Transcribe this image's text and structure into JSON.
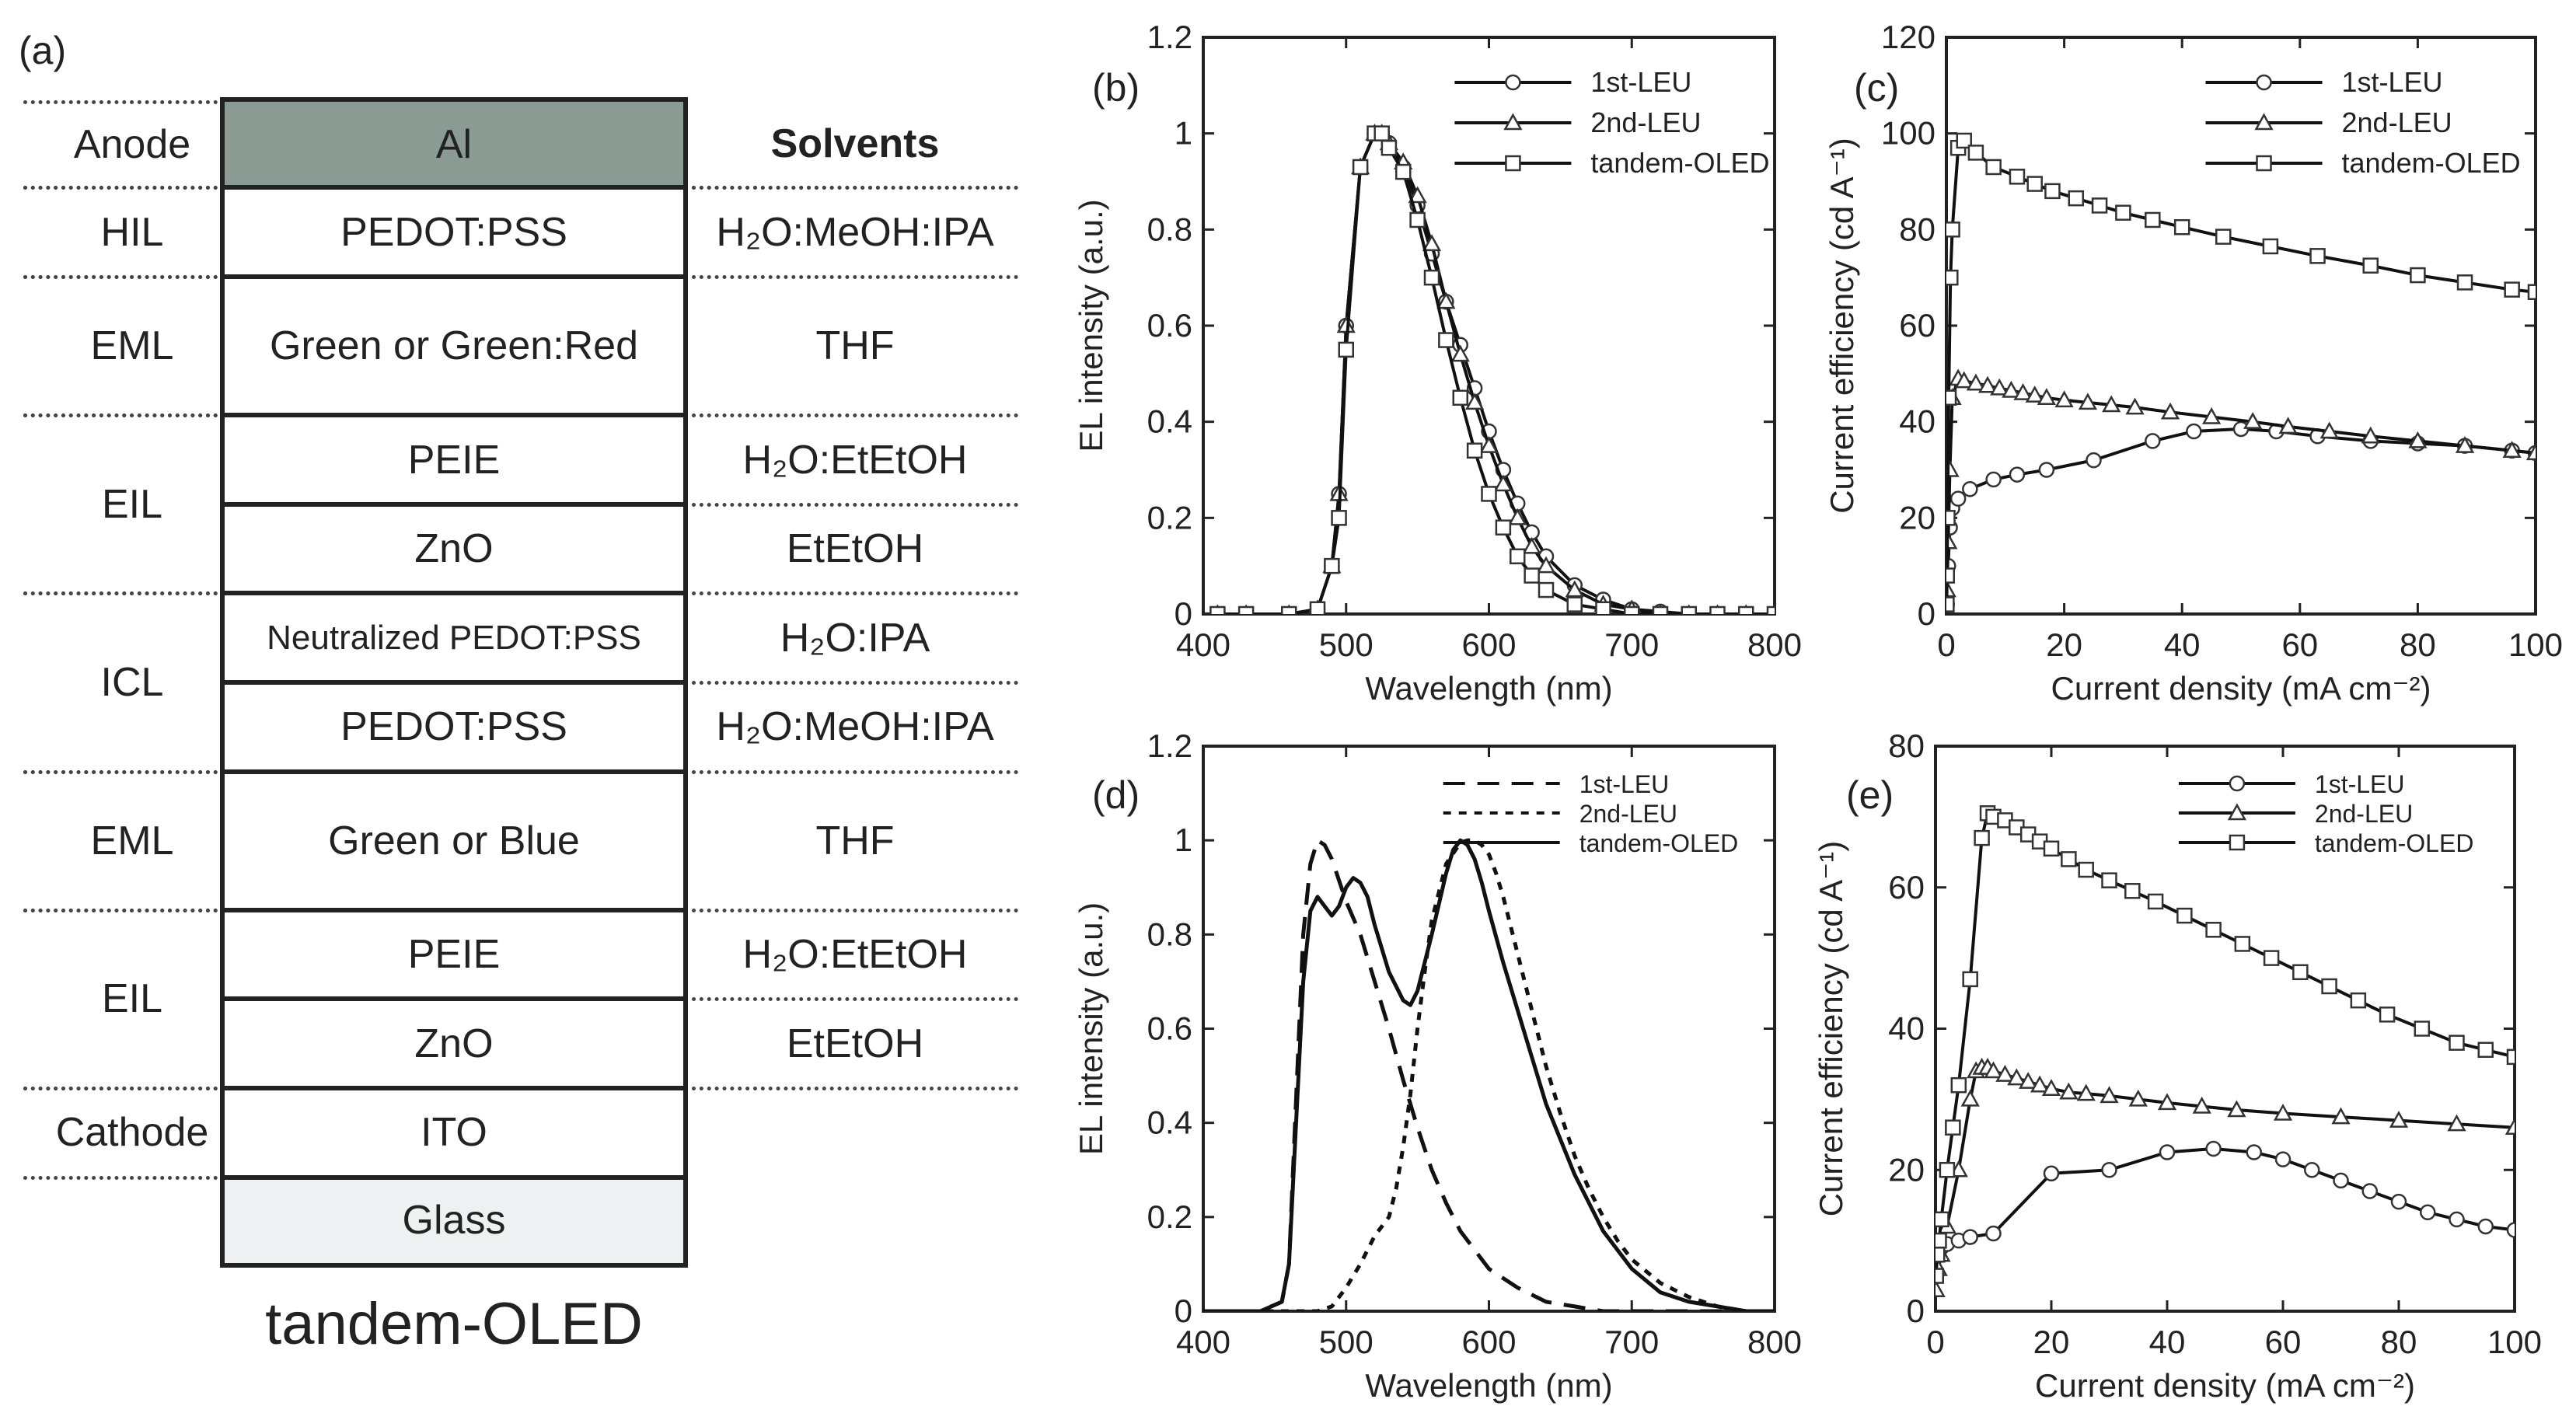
{
  "panel_a": {
    "label": "(a)",
    "title": "tandem-OLED",
    "solvents_header": "Solvents",
    "layers": [
      {
        "name": "Al",
        "group": "Anode",
        "solvent": "",
        "fill": "#8a9b94"
      },
      {
        "name": "PEDOT:PSS",
        "group": "HIL",
        "solvent": "H₂O:MeOH:IPA",
        "fill": "#ffffff"
      },
      {
        "name": "Green or Green:Red",
        "group": "EML",
        "solvent": "THF",
        "fill": "#ffffff"
      },
      {
        "name": "PEIE",
        "group": "EIL",
        "solvent": "H₂O:EtEtOH",
        "fill": "#ffffff"
      },
      {
        "name": "ZnO",
        "group": "",
        "solvent": "EtEtOH",
        "fill": "#ffffff"
      },
      {
        "name": "Neutralized PEDOT:PSS",
        "group": "ICL",
        "solvent": "H₂O:IPA",
        "fill": "#ffffff"
      },
      {
        "name": "PEDOT:PSS",
        "group": "",
        "solvent": "H₂O:MeOH:IPA",
        "fill": "#ffffff"
      },
      {
        "name": "Green or Blue",
        "group": "EML",
        "solvent": "THF",
        "fill": "#ffffff"
      },
      {
        "name": "PEIE",
        "group": "EIL",
        "solvent": "H₂O:EtEtOH",
        "fill": "#ffffff"
      },
      {
        "name": "ZnO",
        "group": "",
        "solvent": "EtEtOH",
        "fill": "#ffffff"
      },
      {
        "name": "ITO",
        "group": "Cathode",
        "solvent": "",
        "fill": "#ffffff"
      },
      {
        "name": "Glass",
        "group": "",
        "solvent": "",
        "fill": "#eef1f1"
      }
    ],
    "groups": [
      "Anode",
      "HIL",
      "EML",
      "EIL",
      "ICL",
      "EML",
      "EIL",
      "Cathode"
    ]
  },
  "chart_data": [
    {
      "id": "b",
      "label": "(b)",
      "type": "line",
      "xlabel": "Wavelength (nm)",
      "ylabel": "EL intensity  (a.u.)",
      "xlim": [
        400,
        800
      ],
      "ylim": [
        0,
        1.2
      ],
      "xticks": [
        "400",
        "500",
        "600",
        "700",
        "800"
      ],
      "yticks": [
        "0",
        "0.2",
        "0.4",
        "0.6",
        "0.8",
        "1",
        "1.2"
      ],
      "legend": "top-right",
      "series": [
        {
          "name": "1st-LEU",
          "marker": "circle",
          "x": [
            410,
            430,
            460,
            480,
            490,
            495,
            500,
            510,
            520,
            525,
            530,
            540,
            550,
            560,
            570,
            580,
            590,
            600,
            610,
            620,
            630,
            640,
            660,
            680,
            700,
            720,
            740,
            760,
            780,
            800
          ],
          "y": [
            0,
            0,
            0,
            0.01,
            0.1,
            0.25,
            0.6,
            0.93,
            1.0,
            1.0,
            0.98,
            0.93,
            0.85,
            0.75,
            0.65,
            0.56,
            0.47,
            0.38,
            0.3,
            0.23,
            0.17,
            0.12,
            0.06,
            0.03,
            0.01,
            0.005,
            0,
            0,
            0,
            0
          ]
        },
        {
          "name": "2nd-LEU",
          "marker": "triangle",
          "x": [
            410,
            430,
            460,
            480,
            490,
            495,
            500,
            510,
            520,
            525,
            530,
            540,
            550,
            560,
            570,
            580,
            590,
            600,
            610,
            620,
            630,
            640,
            660,
            680,
            700,
            720,
            740,
            760,
            780,
            800
          ],
          "y": [
            0,
            0,
            0,
            0.01,
            0.1,
            0.25,
            0.6,
            0.93,
            1.0,
            1.0,
            0.98,
            0.94,
            0.87,
            0.77,
            0.65,
            0.54,
            0.44,
            0.35,
            0.27,
            0.2,
            0.14,
            0.1,
            0.05,
            0.02,
            0.01,
            0,
            0,
            0,
            0,
            0
          ]
        },
        {
          "name": "tandem-OLED",
          "marker": "square",
          "x": [
            410,
            430,
            460,
            480,
            490,
            495,
            500,
            510,
            520,
            525,
            530,
            540,
            550,
            560,
            570,
            580,
            590,
            600,
            610,
            620,
            630,
            640,
            660,
            680,
            700,
            720,
            740,
            760,
            780,
            800
          ],
          "y": [
            0,
            0,
            0,
            0.01,
            0.1,
            0.2,
            0.55,
            0.93,
            1.0,
            1.0,
            0.97,
            0.92,
            0.82,
            0.7,
            0.57,
            0.45,
            0.34,
            0.25,
            0.18,
            0.12,
            0.08,
            0.05,
            0.02,
            0.01,
            0,
            0,
            0,
            0,
            0,
            0
          ]
        }
      ]
    },
    {
      "id": "c",
      "label": "(c)",
      "type": "line",
      "xlabel": "Current density (mA cm⁻²)",
      "ylabel": "Current efficiency (cd A⁻¹)",
      "xlim": [
        0,
        100
      ],
      "ylim": [
        0,
        120
      ],
      "xticks": [
        "0",
        "20",
        "40",
        "60",
        "80",
        "100"
      ],
      "yticks": [
        "0",
        "20",
        "40",
        "60",
        "80",
        "100",
        "120"
      ],
      "legend": "top-right",
      "series": [
        {
          "name": "1st-LEU",
          "marker": "circle",
          "x": [
            0.1,
            0.3,
            0.6,
            1,
            2,
            4,
            8,
            12,
            17,
            25,
            35,
            42,
            50,
            56,
            63,
            72,
            80,
            88,
            96,
            100
          ],
          "y": [
            2,
            10,
            18,
            22,
            24,
            26,
            28,
            29,
            30,
            32,
            36,
            38,
            38.5,
            38,
            37,
            36,
            35.5,
            35,
            34,
            33.5
          ]
        },
        {
          "name": "2nd-LEU",
          "marker": "triangle",
          "x": [
            0.1,
            0.3,
            0.6,
            1,
            2,
            3,
            5,
            7,
            9,
            11,
            13,
            15,
            17,
            20,
            24,
            28,
            32,
            38,
            45,
            52,
            58,
            65,
            72,
            80,
            88,
            96,
            100
          ],
          "y": [
            5,
            15,
            30,
            45,
            49,
            48.5,
            48,
            47.5,
            47,
            46.5,
            46,
            45.5,
            45,
            44.5,
            44,
            43.5,
            43,
            42,
            41,
            40,
            39,
            38,
            37,
            36,
            35,
            34,
            33.5
          ]
        },
        {
          "name": "tandem-OLED",
          "marker": "square",
          "x": [
            0.05,
            0.1,
            0.2,
            0.4,
            0.7,
            1,
            2,
            3,
            5,
            8,
            12,
            15,
            18,
            22,
            26,
            30,
            35,
            40,
            47,
            55,
            63,
            72,
            80,
            88,
            96,
            100
          ],
          "y": [
            2,
            8,
            20,
            45,
            70,
            80,
            97,
            98.5,
            96,
            93,
            91,
            89.5,
            88,
            86.5,
            85,
            83.5,
            82,
            80.5,
            78.5,
            76.5,
            74.5,
            72.5,
            70.5,
            69,
            67.5,
            67
          ]
        }
      ]
    },
    {
      "id": "d",
      "label": "(d)",
      "type": "line",
      "xlabel": "Wavelength (nm)",
      "ylabel": "EL intensity  (a.u.)",
      "xlim": [
        400,
        800
      ],
      "ylim": [
        0,
        1.2
      ],
      "xticks": [
        "400",
        "500",
        "600",
        "700",
        "800"
      ],
      "yticks": [
        "0",
        "0.2",
        "0.4",
        "0.6",
        "0.8",
        "1",
        "1.2"
      ],
      "legend": "top-right",
      "series": [
        {
          "name": "1st-LEU",
          "dash": "long",
          "x": [
            400,
            440,
            455,
            460,
            465,
            470,
            475,
            480,
            485,
            490,
            500,
            510,
            520,
            530,
            540,
            550,
            560,
            570,
            580,
            590,
            600,
            620,
            640,
            660,
            680,
            700,
            720,
            740,
            760,
            780,
            800
          ],
          "y": [
            0,
            0,
            0.02,
            0.1,
            0.45,
            0.8,
            0.95,
            1.0,
            0.99,
            0.96,
            0.87,
            0.8,
            0.7,
            0.6,
            0.49,
            0.39,
            0.3,
            0.23,
            0.17,
            0.13,
            0.09,
            0.05,
            0.02,
            0.01,
            0,
            0,
            0,
            0,
            0,
            0,
            0
          ]
        },
        {
          "name": "2nd-LEU",
          "dash": "short",
          "x": [
            400,
            480,
            490,
            500,
            510,
            520,
            525,
            530,
            535,
            540,
            545,
            550,
            555,
            560,
            570,
            580,
            585,
            590,
            595,
            600,
            605,
            610,
            620,
            630,
            640,
            650,
            660,
            670,
            680,
            690,
            700,
            720,
            740,
            760,
            780,
            800
          ],
          "y": [
            0,
            0,
            0.01,
            0.05,
            0.1,
            0.16,
            0.18,
            0.2,
            0.26,
            0.35,
            0.46,
            0.6,
            0.72,
            0.83,
            0.95,
            0.995,
            1.0,
            1.0,
            0.99,
            0.97,
            0.93,
            0.88,
            0.76,
            0.64,
            0.52,
            0.42,
            0.33,
            0.26,
            0.2,
            0.15,
            0.11,
            0.06,
            0.03,
            0.01,
            0,
            0
          ]
        },
        {
          "name": "tandem-OLED",
          "dash": "solid",
          "x": [
            400,
            440,
            455,
            460,
            465,
            470,
            475,
            480,
            485,
            490,
            495,
            500,
            505,
            510,
            515,
            520,
            530,
            540,
            545,
            550,
            560,
            570,
            575,
            580,
            585,
            590,
            595,
            600,
            610,
            620,
            630,
            640,
            660,
            680,
            700,
            720,
            740,
            760,
            780,
            800
          ],
          "y": [
            0,
            0,
            0.02,
            0.1,
            0.4,
            0.7,
            0.85,
            0.88,
            0.86,
            0.84,
            0.86,
            0.9,
            0.92,
            0.91,
            0.88,
            0.82,
            0.72,
            0.66,
            0.65,
            0.68,
            0.8,
            0.93,
            0.98,
            1.0,
            0.99,
            0.96,
            0.91,
            0.85,
            0.74,
            0.64,
            0.54,
            0.44,
            0.29,
            0.17,
            0.09,
            0.04,
            0.02,
            0.01,
            0,
            0
          ]
        }
      ]
    },
    {
      "id": "e",
      "label": "(e)",
      "type": "line",
      "xlabel": "Current density (mA cm⁻²)",
      "ylabel": "Current efficiency (cd A⁻¹)",
      "xlim": [
        0,
        100
      ],
      "ylim": [
        0,
        80
      ],
      "xticks": [
        "0",
        "20",
        "40",
        "60",
        "80",
        "100"
      ],
      "yticks": [
        "0",
        "20",
        "40",
        "60",
        "80"
      ],
      "legend": "top-right",
      "series": [
        {
          "name": "1st-LEU",
          "marker": "circle",
          "x": [
            0.1,
            0.5,
            1,
            2,
            4,
            6,
            10,
            20,
            30,
            40,
            48,
            55,
            60,
            65,
            70,
            75,
            80,
            85,
            90,
            95,
            100
          ],
          "y": [
            5,
            8,
            9,
            9.5,
            10,
            10.5,
            11,
            19.5,
            20,
            22.5,
            23,
            22.5,
            21.5,
            20,
            18.5,
            17,
            15.5,
            14,
            13,
            12,
            11.5
          ]
        },
        {
          "name": "2nd-LEU",
          "marker": "triangle",
          "x": [
            0.1,
            0.5,
            1,
            2,
            4,
            6,
            7,
            8,
            9,
            10,
            12,
            14,
            16,
            18,
            20,
            23,
            26,
            30,
            35,
            40,
            46,
            52,
            60,
            70,
            80,
            90,
            100
          ],
          "y": [
            3,
            6,
            8,
            12,
            20,
            30,
            34,
            34.5,
            34.5,
            34,
            33.5,
            33,
            32.5,
            32,
            31.5,
            31,
            30.8,
            30.5,
            30,
            29.5,
            29,
            28.5,
            28,
            27.5,
            27,
            26.5,
            26
          ]
        },
        {
          "name": "tandem-OLED",
          "marker": "square",
          "x": [
            0.1,
            0.3,
            0.6,
            1,
            2,
            3,
            4,
            6,
            8,
            9,
            10,
            12,
            14,
            16,
            18,
            20,
            23,
            26,
            30,
            34,
            38,
            43,
            48,
            53,
            58,
            63,
            68,
            73,
            78,
            84,
            90,
            95,
            100
          ],
          "y": [
            5,
            8,
            10,
            13,
            20,
            26,
            32,
            47,
            67,
            70.5,
            70,
            69.5,
            68.5,
            67.5,
            66.5,
            65.5,
            64,
            62.5,
            61,
            59.5,
            58,
            56,
            54,
            52,
            50,
            48,
            46,
            44,
            42,
            40,
            38,
            37,
            36
          ]
        }
      ]
    }
  ]
}
